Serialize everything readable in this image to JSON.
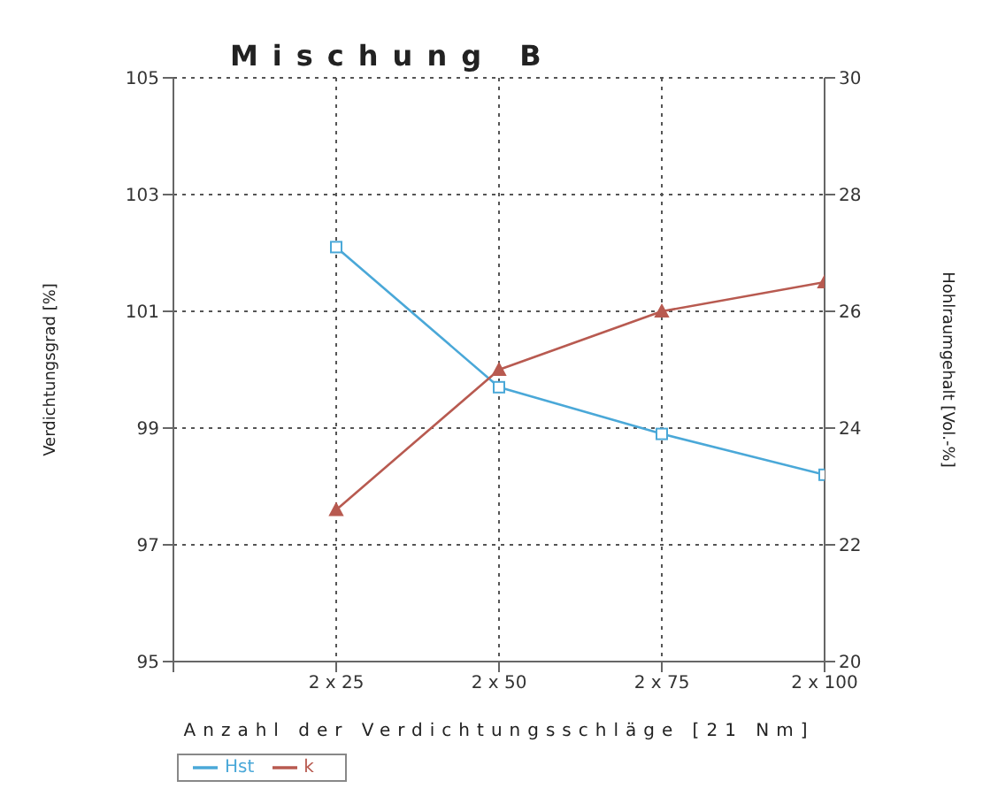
{
  "chart_data": {
    "type": "line",
    "title": "Mischung B",
    "xlabel": "Anzahl der Verdichtungsschläge [21 Nm]",
    "ylabel": "Verdichtungsgrad [%]",
    "y2label": "Hohlraumgehalt [Vol.-%]",
    "categories": [
      null,
      "2 x 25",
      "2 x 50",
      "2 x 75",
      "2 x 100"
    ],
    "ylim": [
      95,
      105
    ],
    "yticks": [
      95,
      97,
      99,
      101,
      103,
      105
    ],
    "y2lim": [
      20,
      30
    ],
    "y2ticks": [
      20,
      22,
      24,
      26,
      28,
      30
    ],
    "series": [
      {
        "name": "Hst",
        "color": "#4aa8d8",
        "values": [
          null,
          102.1,
          99.7,
          98.9,
          98.2
        ],
        "marker": "square"
      },
      {
        "name": "k",
        "color": "#b85a50",
        "values": [
          null,
          22.6,
          25.0,
          26.0,
          26.5
        ],
        "axis": "y2",
        "marker": "triangle"
      }
    ],
    "grid": true,
    "legend": "bottom left",
    "line_style": "solid"
  }
}
